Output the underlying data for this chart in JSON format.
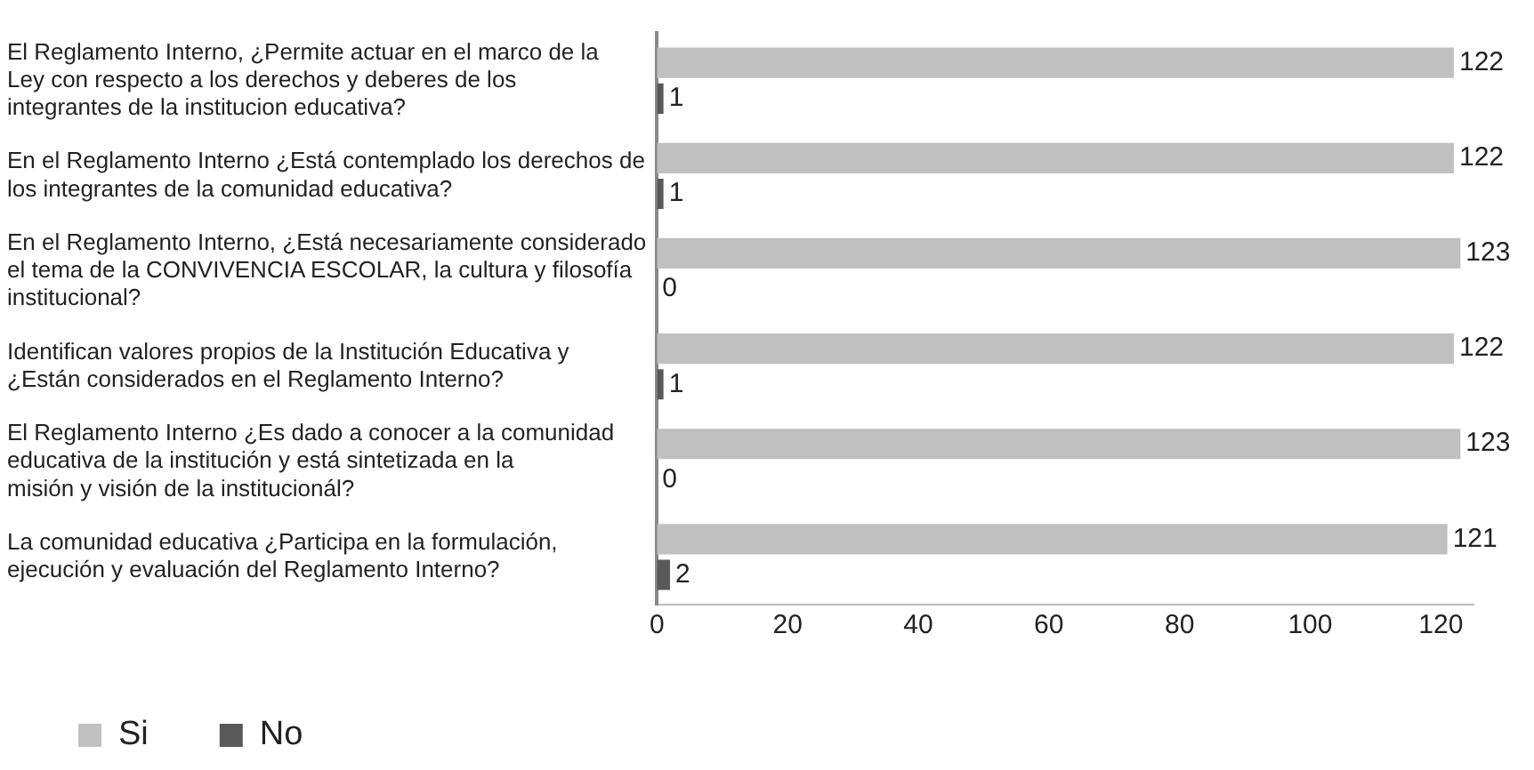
{
  "chart_data": {
    "type": "bar",
    "orientation": "horizontal",
    "categories": [
      "El Reglamento Interno, ¿Permite actuar en el marco de la Ley con respecto a los derechos y deberes de los integrantes de la institucion educativa?",
      "En el Reglamento Interno ¿Está contemplado los derechos de los integrantes de la comunidad educativa?",
      "En el Reglamento Interno, ¿Está necesariamente considerado el tema de la CONVIVENCIA ESCOLAR, la cultura y filosofía institucional?",
      "Identifican valores propios de la Institución Educativa y ¿Están considerados en el Reglamento Interno?",
      "El Reglamento Interno ¿Es dado a conocer a la comunidad educativa de la institución y está sintetizada en la misión y visión de la institucionál?",
      "La comunidad educativa ¿Participa en la formulación, ejecución y evaluación del Reglamento Interno?"
    ],
    "series": [
      {
        "name": "Si",
        "color": "#c0c0c0",
        "values": [
          122,
          122,
          123,
          122,
          123,
          121
        ]
      },
      {
        "name": "No",
        "color": "#595959",
        "values": [
          1,
          1,
          0,
          1,
          0,
          2
        ]
      }
    ],
    "xlim": [
      0,
      125
    ],
    "xticks": [
      0,
      20,
      40,
      60,
      80,
      100,
      120
    ],
    "grid": false,
    "legend": "bottom left",
    "data_labels": true
  }
}
